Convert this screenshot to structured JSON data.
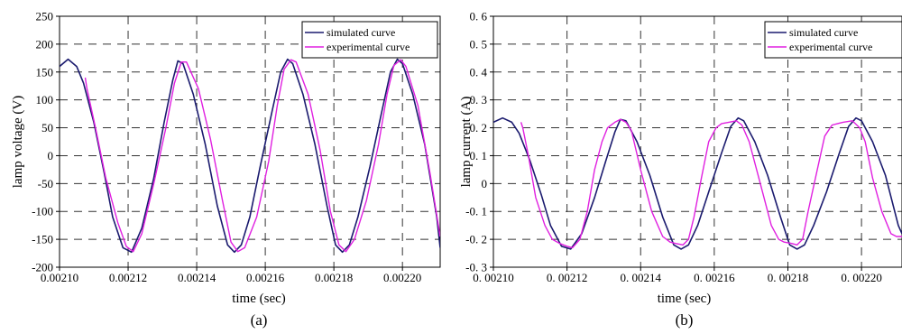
{
  "chart_data": [
    {
      "type": "line",
      "caption": "(a)",
      "xlabel": "time (sec)",
      "ylabel": "lamp voltage (V)",
      "xlim": [
        0.0021,
        0.002211
      ],
      "ylim": [
        -200,
        250
      ],
      "grid": "dashed",
      "legend_position": "top-right",
      "xticks": [
        0.0021,
        0.00212,
        0.00214,
        0.00216,
        0.00218,
        0.0022
      ],
      "xtick_labels": [
        "0.00210",
        "0.00212",
        "0.00214",
        "0.00216",
        "0.00218",
        "0.00220"
      ],
      "yticks": [
        -200,
        -150,
        -100,
        -50,
        0,
        50,
        100,
        150,
        200,
        250
      ],
      "ytick_labels": [
        "-200",
        "-150",
        "-100",
        "-50",
        "0",
        "50",
        "100",
        "150",
        "200",
        "250"
      ],
      "series": [
        {
          "name": "simulated curve",
          "color": "#1a1a6e",
          "x": [
            0.0021,
            0.0021025,
            0.002105,
            0.002107,
            0.00211,
            0.002113,
            0.0021155,
            0.0021185,
            0.002121,
            0.002124,
            0.0021275,
            0.0021305,
            0.002133,
            0.0021345,
            0.002136,
            0.002139,
            0.0021425,
            0.002146,
            0.002149,
            0.002151,
            0.002153,
            0.0021555,
            0.0021585,
            0.002162,
            0.0021645,
            0.0021665,
            0.002168,
            0.002171,
            0.0021745,
            0.002178,
            0.0021805,
            0.0021825,
            0.0021845,
            0.002187,
            0.0021905,
            0.002194,
            0.0021965,
            0.0021985,
            0.0022,
            0.002203,
            0.0022065,
            0.00221,
            0.002211
          ],
          "y": [
            160,
            173,
            160,
            130,
            60,
            -30,
            -110,
            -165,
            -173,
            -130,
            -40,
            60,
            135,
            170,
            165,
            110,
            20,
            -90,
            -160,
            -173,
            -160,
            -110,
            -20,
            80,
            150,
            173,
            165,
            110,
            20,
            -90,
            -160,
            -173,
            -160,
            -110,
            -20,
            80,
            150,
            173,
            165,
            110,
            20,
            -110,
            -165
          ]
        },
        {
          "name": "experimental curve",
          "color": "#e020e0",
          "x": [
            0.0021075,
            0.002108,
            0.0021105,
            0.0021135,
            0.002117,
            0.0021195,
            0.0021215,
            0.002124,
            0.0021275,
            0.002131,
            0.0021335,
            0.0021355,
            0.002137,
            0.0021405,
            0.002144,
            0.0021475,
            0.00215,
            0.002152,
            0.002154,
            0.0021575,
            0.002161,
            0.0021635,
            0.0021655,
            0.0021675,
            0.002169,
            0.0021725,
            0.002176,
            0.002179,
            0.0021815,
            0.0021835,
            0.002186,
            0.0021895,
            0.002193,
            0.0021955,
            0.0021975,
            0.0021995,
            0.002201,
            0.0022045,
            0.002208,
            0.002211
          ],
          "y": [
            140,
            120,
            50,
            -40,
            -120,
            -163,
            -172,
            -140,
            -50,
            50,
            130,
            168,
            168,
            120,
            30,
            -80,
            -155,
            -172,
            -165,
            -110,
            -10,
            90,
            155,
            172,
            168,
            110,
            10,
            -100,
            -160,
            -172,
            -150,
            -80,
            20,
            110,
            162,
            172,
            160,
            90,
            -30,
            -145
          ]
        }
      ]
    },
    {
      "type": "line",
      "caption": "(b)",
      "xlabel": "time (sec)",
      "ylabel": "lamp current (A)",
      "xlim": [
        0.0021,
        0.002211
      ],
      "ylim": [
        -0.3,
        0.6
      ],
      "grid": "dashed",
      "legend_position": "top-right",
      "xticks": [
        0.0021,
        0.00212,
        0.00214,
        0.00216,
        0.00218,
        0.0022
      ],
      "xtick_labels": [
        "0. 00210",
        "0. 00212",
        "0. 00214",
        "0. 00216",
        "0. 00218",
        "0. 00220"
      ],
      "yticks": [
        -0.3,
        -0.2,
        -0.1,
        0,
        0.1,
        0.2,
        0.3,
        0.4,
        0.5,
        0.6
      ],
      "ytick_labels": [
        "-0. 3",
        "-0. 2",
        "-0. 1",
        "0",
        "0. 1",
        "0. 2",
        "0. 3",
        "0. 4",
        "0. 5",
        "0. 6"
      ],
      "series": [
        {
          "name": "simulated curve",
          "color": "#1a1a6e",
          "x": [
            0.0021,
            0.0021025,
            0.002105,
            0.002107,
            0.00211,
            0.002113,
            0.0021155,
            0.0021185,
            0.002121,
            0.002124,
            0.0021275,
            0.0021305,
            0.002133,
            0.0021345,
            0.002136,
            0.002139,
            0.0021425,
            0.002146,
            0.002149,
            0.002151,
            0.002153,
            0.0021555,
            0.0021585,
            0.002162,
            0.0021645,
            0.0021665,
            0.002168,
            0.002171,
            0.0021745,
            0.002178,
            0.0021805,
            0.0021825,
            0.0021845,
            0.002187,
            0.0021905,
            0.002194,
            0.0021965,
            0.0021985,
            0.0022,
            0.002203,
            0.0022065,
            0.00221,
            0.002211
          ],
          "y": [
            0.22,
            0.235,
            0.22,
            0.18,
            0.08,
            -0.04,
            -0.15,
            -0.225,
            -0.235,
            -0.18,
            -0.05,
            0.08,
            0.185,
            0.23,
            0.225,
            0.15,
            0.03,
            -0.12,
            -0.22,
            -0.235,
            -0.22,
            -0.15,
            -0.03,
            0.11,
            0.205,
            0.235,
            0.225,
            0.15,
            0.03,
            -0.12,
            -0.22,
            -0.235,
            -0.22,
            -0.15,
            -0.03,
            0.11,
            0.205,
            0.235,
            0.225,
            0.15,
            0.03,
            -0.15,
            -0.18
          ]
        },
        {
          "name": "experimental curve",
          "color": "#e020e0",
          "x": [
            0.0021075,
            0.002108,
            0.0021095,
            0.0021115,
            0.002114,
            0.002116,
            0.002118,
            0.00212,
            0.0021215,
            0.0021235,
            0.0021255,
            0.0021275,
            0.0021295,
            0.002131,
            0.002133,
            0.0021345,
            0.002136,
            0.0021375,
            0.00214,
            0.002143,
            0.002146,
            0.002148,
            0.0021495,
            0.0021515,
            0.002153,
            0.0021545,
            0.0021565,
            0.0021585,
            0.0021605,
            0.002162,
            0.002164,
            0.002166,
            0.0021675,
            0.0021695,
            0.0021725,
            0.0021755,
            0.0021775,
            0.002179,
            0.002181,
            0.0021825,
            0.002184,
            0.0021855,
            0.002188,
            0.00219,
            0.002192,
            0.0021935,
            0.002195,
            0.0021975,
            0.0021995,
            0.002201,
            0.002203,
            0.0022055,
            0.002208,
            0.0022095,
            0.002211
          ],
          "y": [
            0.22,
            0.2,
            0.1,
            -0.05,
            -0.15,
            -0.2,
            -0.215,
            -0.225,
            -0.23,
            -0.2,
            -0.1,
            0.05,
            0.15,
            0.2,
            0.22,
            0.23,
            0.22,
            0.19,
            0.05,
            -0.1,
            -0.19,
            -0.21,
            -0.215,
            -0.22,
            -0.2,
            -0.12,
            0.02,
            0.15,
            0.2,
            0.215,
            0.22,
            0.225,
            0.21,
            0.15,
            0.0,
            -0.15,
            -0.2,
            -0.21,
            -0.215,
            -0.22,
            -0.2,
            -0.1,
            0.05,
            0.17,
            0.21,
            0.215,
            0.22,
            0.225,
            0.2,
            0.15,
            0.02,
            -0.1,
            -0.18,
            -0.19,
            -0.19
          ]
        }
      ]
    }
  ]
}
